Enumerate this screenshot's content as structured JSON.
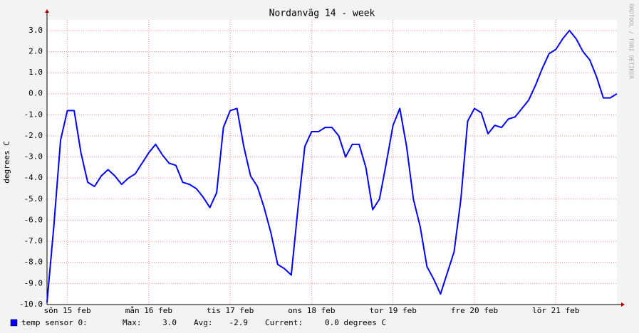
{
  "chart_data": {
    "type": "line",
    "title": "Nordanväg 14 - week",
    "y_label": "degrees C",
    "watermark": "RRDTOOL / TOBI OETIKER",
    "xlim": [
      0,
      168
    ],
    "xticks": [
      {
        "value": 6,
        "label": "sön 15 feb"
      },
      {
        "value": 30,
        "label": "mån 16 feb"
      },
      {
        "value": 54,
        "label": "tis 17 feb"
      },
      {
        "value": 78,
        "label": "ons 18 feb"
      },
      {
        "value": 102,
        "label": "tor 19 feb"
      },
      {
        "value": 126,
        "label": "fre 20 feb"
      },
      {
        "value": 150,
        "label": "lör 21 feb"
      }
    ],
    "ylim": [
      -10,
      3.5
    ],
    "yticks": [
      {
        "value": 3,
        "label": "3.0"
      },
      {
        "value": 2,
        "label": "2.0"
      },
      {
        "value": 1,
        "label": "1.0"
      },
      {
        "value": 0,
        "label": "0.0"
      },
      {
        "value": -1,
        "label": "-1.0"
      },
      {
        "value": -2,
        "label": "-2.0"
      },
      {
        "value": -3,
        "label": "-3.0"
      },
      {
        "value": -4,
        "label": "-4.0"
      },
      {
        "value": -5,
        "label": "-5.0"
      },
      {
        "value": -6,
        "label": "-6.0"
      },
      {
        "value": -7,
        "label": "-7.0"
      },
      {
        "value": -8,
        "label": "-8.0"
      },
      {
        "value": -9,
        "label": "-9.0"
      },
      {
        "value": -10,
        "label": "-10.0"
      }
    ],
    "grid": true,
    "series": [
      {
        "name": "temp sensor 0:",
        "color": "#0000ff",
        "x": [
          0,
          2,
          4,
          6,
          8,
          10,
          12,
          14,
          16,
          18,
          20,
          22,
          24,
          26,
          28,
          30,
          32,
          34,
          36,
          38,
          40,
          42,
          44,
          46,
          48,
          50,
          52,
          54,
          56,
          58,
          60,
          62,
          64,
          66,
          68,
          70,
          72,
          74,
          76,
          78,
          80,
          82,
          84,
          86,
          88,
          90,
          92,
          94,
          96,
          98,
          100,
          102,
          104,
          106,
          108,
          110,
          112,
          114,
          116,
          118,
          120,
          122,
          124,
          126,
          128,
          130,
          132,
          134,
          136,
          138,
          140,
          142,
          144,
          146,
          148,
          150,
          152,
          154,
          156,
          158,
          160,
          162,
          164,
          166,
          168
        ],
        "values": [
          -9.9,
          -6.3,
          -2.2,
          -0.8,
          -0.8,
          -2.8,
          -4.2,
          -4.4,
          -3.9,
          -3.6,
          -3.9,
          -4.3,
          -4.0,
          -3.8,
          -3.3,
          -2.8,
          -2.4,
          -2.9,
          -3.3,
          -3.4,
          -4.2,
          -4.3,
          -4.5,
          -4.9,
          -5.4,
          -4.7,
          -1.6,
          -0.8,
          -0.7,
          -2.5,
          -3.9,
          -4.4,
          -5.4,
          -6.6,
          -8.1,
          -8.3,
          -8.6,
          -5.4,
          -2.5,
          -1.8,
          -1.8,
          -1.6,
          -1.6,
          -2.0,
          -3.0,
          -2.4,
          -2.4,
          -3.5,
          -5.5,
          -5.0,
          -3.3,
          -1.5,
          -0.7,
          -2.5,
          -5.0,
          -6.3,
          -8.2,
          -8.8,
          -9.5,
          -8.5,
          -7.5,
          -5.0,
          -1.3,
          -0.7,
          -0.9,
          -1.9,
          -1.5,
          -1.6,
          -1.2,
          -1.1,
          -0.7,
          -0.3,
          0.4,
          1.2,
          1.9,
          2.1,
          2.6,
          3.0,
          2.6,
          2.0,
          1.6,
          0.8,
          -0.2,
          -0.2,
          0.0
        ]
      }
    ],
    "stats": [
      {
        "label": "Max:",
        "value": 3.0,
        "value_label": "3.0"
      },
      {
        "label": "Avg:",
        "value": -2.9,
        "value_label": "-2.9"
      },
      {
        "label": "Current:",
        "value": 0.0,
        "value_label": "0.0 degrees C"
      }
    ]
  }
}
